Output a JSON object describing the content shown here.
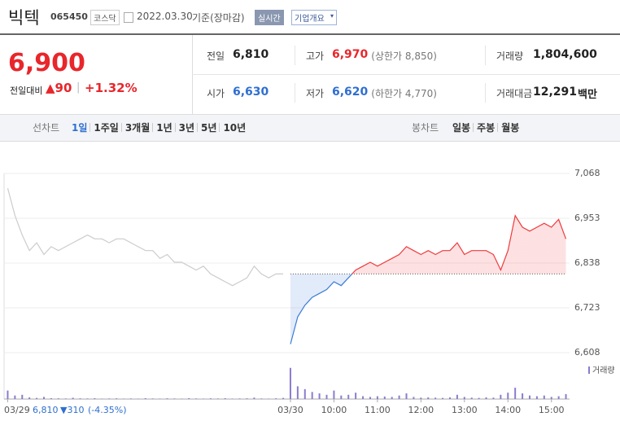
{
  "header": {
    "name": "빅텍",
    "code": "065450",
    "market": "코스닥",
    "date": "2022.03.30",
    "basis": "기준(장마감)",
    "realtime": "실시간",
    "overview": "기업개요"
  },
  "quote": {
    "price": "6,900",
    "change_label": "전일대비",
    "change": "▲90",
    "separator": "|",
    "change_rate": "+1.32%"
  },
  "stats": [
    [
      {
        "label": "전일",
        "value": "6,810",
        "tone": "flat"
      },
      {
        "label": "고가",
        "value": "6,970",
        "tone": "up",
        "note": "(상한가 8,850)"
      },
      {
        "label": "거래량",
        "value": "1,804,600",
        "tone": "flat"
      }
    ],
    [
      {
        "label": "시가",
        "value": "6,630",
        "tone": "down"
      },
      {
        "label": "저가",
        "value": "6,620",
        "tone": "down",
        "note": "(하한가 4,770)"
      },
      {
        "label": "거래대금",
        "value": "12,291",
        "tone": "flat",
        "unit": "백만"
      }
    ]
  ],
  "tabs": {
    "line_label": "선차트",
    "line": [
      "1일",
      "1주일",
      "3개월",
      "1년",
      "3년",
      "5년",
      "10년"
    ],
    "candle_label": "봉차트",
    "candle": [
      "일봉",
      "주봉",
      "월봉"
    ]
  },
  "footer": {
    "price": "6,810",
    "change": "▼310",
    "rate": "(-4.35%)"
  },
  "chart_data": {
    "type": "line",
    "categories": [
      "03/29",
      null,
      null,
      null,
      null,
      null,
      null,
      null,
      null,
      null,
      null,
      null,
      null,
      null,
      null,
      null,
      null,
      null,
      null,
      null,
      null,
      null,
      null,
      null,
      null,
      null,
      null,
      null,
      null,
      null,
      null,
      null,
      null,
      null,
      null,
      null,
      null,
      null,
      null,
      "03/30",
      null,
      null,
      null,
      null,
      null,
      "10:00",
      null,
      null,
      null,
      null,
      null,
      "11:00",
      null,
      null,
      null,
      null,
      null,
      "12:00",
      null,
      null,
      null,
      null,
      null,
      "13:00",
      null,
      null,
      null,
      null,
      null,
      "14:00",
      null,
      null,
      null,
      null,
      null,
      "15:00",
      null,
      null
    ],
    "series": [
      {
        "color": "#cccccc",
        "values": [
          7030,
          6960,
          6910,
          6870,
          6890,
          6860,
          6880,
          6870,
          6880,
          6890,
          6900,
          6910,
          6900,
          6900,
          6890,
          6900,
          6900,
          6890,
          6880,
          6870,
          6870,
          6850,
          6860,
          6840,
          6840,
          6830,
          6820,
          6830,
          6810,
          6800,
          6790,
          6780,
          6790,
          6800,
          6830,
          6810,
          6800,
          6810,
          6810,
          null,
          null,
          null,
          null,
          null,
          null,
          null,
          null,
          null,
          null,
          null,
          null,
          null,
          null,
          null,
          null,
          null,
          null,
          null,
          null,
          null,
          null,
          null,
          null,
          null,
          null,
          null,
          null,
          null,
          null,
          null,
          null,
          null,
          null,
          null,
          null,
          null,
          null,
          null
        ]
      },
      {
        "color": "#f0393b",
        "down_color": "#3a7bd5",
        "values": [
          null,
          null,
          null,
          null,
          null,
          null,
          null,
          null,
          null,
          null,
          null,
          null,
          null,
          null,
          null,
          null,
          null,
          null,
          null,
          null,
          null,
          null,
          null,
          null,
          null,
          null,
          null,
          null,
          null,
          null,
          null,
          null,
          null,
          null,
          null,
          null,
          null,
          null,
          null,
          6630,
          6700,
          6730,
          6750,
          6760,
          6770,
          6790,
          6780,
          6800,
          6820,
          6830,
          6840,
          6830,
          6840,
          6850,
          6860,
          6880,
          6870,
          6860,
          6870,
          6860,
          6870,
          6870,
          6890,
          6860,
          6870,
          6870,
          6870,
          6860,
          6820,
          6870,
          6960,
          6930,
          6920,
          6930,
          6940,
          6930,
          6950,
          6900
        ]
      }
    ],
    "reference": 6810,
    "ylim": [
      6608,
      7068
    ],
    "yticks": [
      {
        "value": 6608,
        "label": "6,608"
      },
      {
        "value": 6723,
        "label": "6,723"
      },
      {
        "value": 6838,
        "label": "6,838"
      },
      {
        "value": 6953,
        "label": "6,953"
      },
      {
        "value": 7068,
        "label": "7,068"
      }
    ],
    "grid": true,
    "volume_label": "거래량",
    "volume_color": "#8c7bd0",
    "volume_ylim": [
      0,
      230000
    ],
    "volume": [
      60000,
      25000,
      30000,
      12000,
      8000,
      15000,
      6000,
      5000,
      4000,
      9000,
      5000,
      4000,
      6000,
      3000,
      4000,
      5000,
      3000,
      4000,
      3000,
      6000,
      4000,
      3000,
      5000,
      4000,
      3000,
      6000,
      4000,
      3000,
      5000,
      4000,
      6000,
      3000,
      4000,
      5000,
      10000,
      4000,
      3000,
      5000,
      8000,
      220000,
      90000,
      70000,
      50000,
      40000,
      30000,
      60000,
      25000,
      30000,
      45000,
      20000,
      15000,
      20000,
      18000,
      15000,
      25000,
      40000,
      15000,
      10000,
      12000,
      10000,
      8000,
      12000,
      30000,
      15000,
      10000,
      8000,
      12000,
      10000,
      30000,
      45000,
      80000,
      40000,
      25000,
      20000,
      25000,
      15000,
      20000,
      35000
    ]
  }
}
